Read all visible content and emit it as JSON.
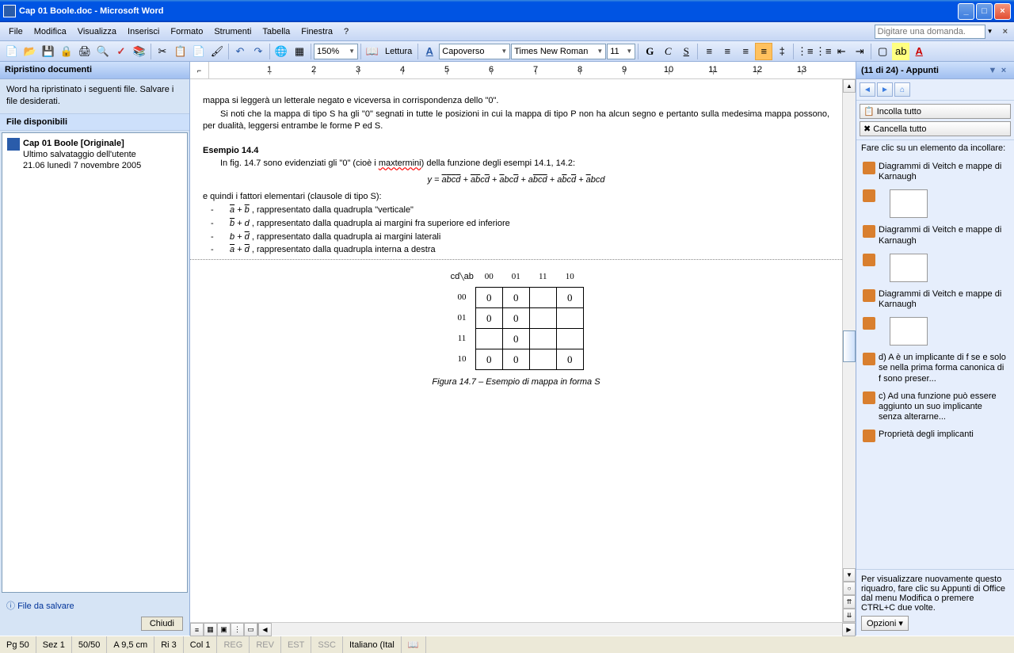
{
  "window": {
    "title": "Cap 01 Boole.doc - Microsoft Word"
  },
  "menu": [
    "File",
    "Modifica",
    "Visualizza",
    "Inserisci",
    "Formato",
    "Strumenti",
    "Tabella",
    "Finestra",
    "?"
  ],
  "helpPlaceholder": "Digitare una domanda.",
  "tb": {
    "zoom": "150%",
    "readLabel": "Lettura",
    "style": "Capoverso",
    "font": "Times New Roman",
    "size": "11"
  },
  "recovery": {
    "title": "Ripristino documenti",
    "msg": "Word ha ripristinato i seguenti file. Salvare i file desiderati.",
    "sub": "File disponibili",
    "file": {
      "name": "Cap 01 Boole [Originale]",
      "line1": "Ultimo salvataggio dell'utente",
      "line2": "21.06 lunedì 7 novembre 2005"
    },
    "footerLink": "File da salvare",
    "closeBtn": "Chiudi"
  },
  "doc": {
    "p1": "mappa si leggerà un letterale negato e viceversa in corrispondenza dello \"0\".",
    "p2": "Si noti che la mappa di tipo S ha gli \"0\" segnati in tutte le posizioni in cui la mappa di tipo P non ha alcun segno e pertanto sulla medesima mappa possono, per dualità, leggersi entrambe le forme P ed S.",
    "h": "Esempio 14.4",
    "p3a": "In fig. 14.7 sono evidenziati gli \"0\" (cioè i ",
    "p3wavy": "maxtermini",
    "p3b": ") della funzione degli esempi 14.1, 14.2:",
    "p4": "e quindi i fattori elementari (clausole di tipo S):",
    "li1": ", rappresentato dalla quadrupla \"verticale\"",
    "li2": ", rappresentato dalla quadrupla ai margini fra superiore ed inferiore",
    "li3": ", rappresentato dalla quadrupla ai margini laterali",
    "li4": ", rappresentato dalla quadrupla interna a destra",
    "figcap": "Figura 14.7 – Esempio di mappa in forma S",
    "kmapCols": [
      "00",
      "01",
      "11",
      "10"
    ],
    "kmapRows": [
      "00",
      "01",
      "11",
      "10"
    ],
    "kmapAxis1": "ab",
    "kmapAxis2": "cd"
  },
  "clip": {
    "title": "(11 di 24) - Appunti",
    "pasteAll": "Incolla tutto",
    "clearAll": "Cancella tutto",
    "instr": "Fare clic su un elemento da incollare:",
    "items": [
      {
        "t": "Diagrammi di Veitch e mappe di Karnaugh",
        "thumb": false
      },
      {
        "t": "",
        "thumb": true
      },
      {
        "t": "Diagrammi di Veitch e mappe di Karnaugh",
        "thumb": false
      },
      {
        "t": "",
        "thumb": true
      },
      {
        "t": "Diagrammi di Veitch e mappe di Karnaugh",
        "thumb": false
      },
      {
        "t": "",
        "thumb": true
      },
      {
        "t": "d) A è un implicante di f se e solo se nella prima forma canonica di f sono preser...",
        "thumb": false
      },
      {
        "t": "c) Ad una funzione può essere aggiunto un suo implicante senza alterarne...",
        "thumb": false
      },
      {
        "t": "Proprietà degli implicanti",
        "thumb": false
      }
    ],
    "foot": "Per visualizzare nuovamente questo riquadro, fare clic su Appunti di Office dal menu Modifica o premere CTRL+C due volte.",
    "opts": "Opzioni ▾"
  },
  "status": {
    "pg": "Pg 50",
    "sez": "Sez 1",
    "pages": "50/50",
    "pos": "A 9,5 cm",
    "ri": "Ri 3",
    "col": "Col 1",
    "reg": "REG",
    "rev": "REV",
    "est": "EST",
    "ssc": "SSC",
    "lang": "Italiano (Ital"
  },
  "ruler": {
    "marks": [
      1,
      2,
      3,
      4,
      5,
      6,
      7,
      8,
      9,
      10,
      11,
      12,
      13
    ]
  }
}
